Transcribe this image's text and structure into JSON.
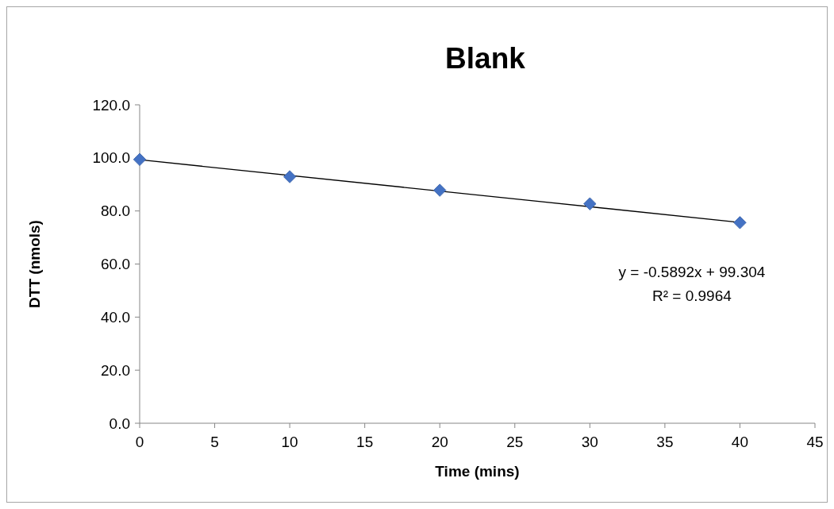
{
  "chart_data": {
    "type": "scatter",
    "title": "Blank",
    "xlabel": "Time (mins)",
    "ylabel": "DTT (nmols)",
    "xlim": [
      0,
      45
    ],
    "xticks": [
      0,
      5,
      10,
      15,
      20,
      25,
      30,
      35,
      40,
      45
    ],
    "ylim": [
      0,
      120
    ],
    "yticks": [
      {
        "value": 0,
        "label": "0.0"
      },
      {
        "value": 20,
        "label": "20.0"
      },
      {
        "value": 40,
        "label": "40.0"
      },
      {
        "value": 60,
        "label": "60.0"
      },
      {
        "value": 80,
        "label": "80.0"
      },
      {
        "value": 100,
        "label": "100.0"
      },
      {
        "value": 120,
        "label": "120.0"
      }
    ],
    "marker": "diamond",
    "series": [
      {
        "color": "#4472c4",
        "x": [
          0,
          10,
          20,
          30,
          40
        ],
        "values": [
          99.4,
          92.9,
          87.8,
          82.7,
          75.6
        ]
      },
      {
        "type": "line",
        "marker": "none",
        "color": "#000000",
        "x": [
          0,
          40
        ],
        "values": [
          99.3,
          75.7
        ]
      }
    ],
    "annotations": [
      "y = -0.5892x + 99.304",
      "R² = 0.9964"
    ]
  }
}
